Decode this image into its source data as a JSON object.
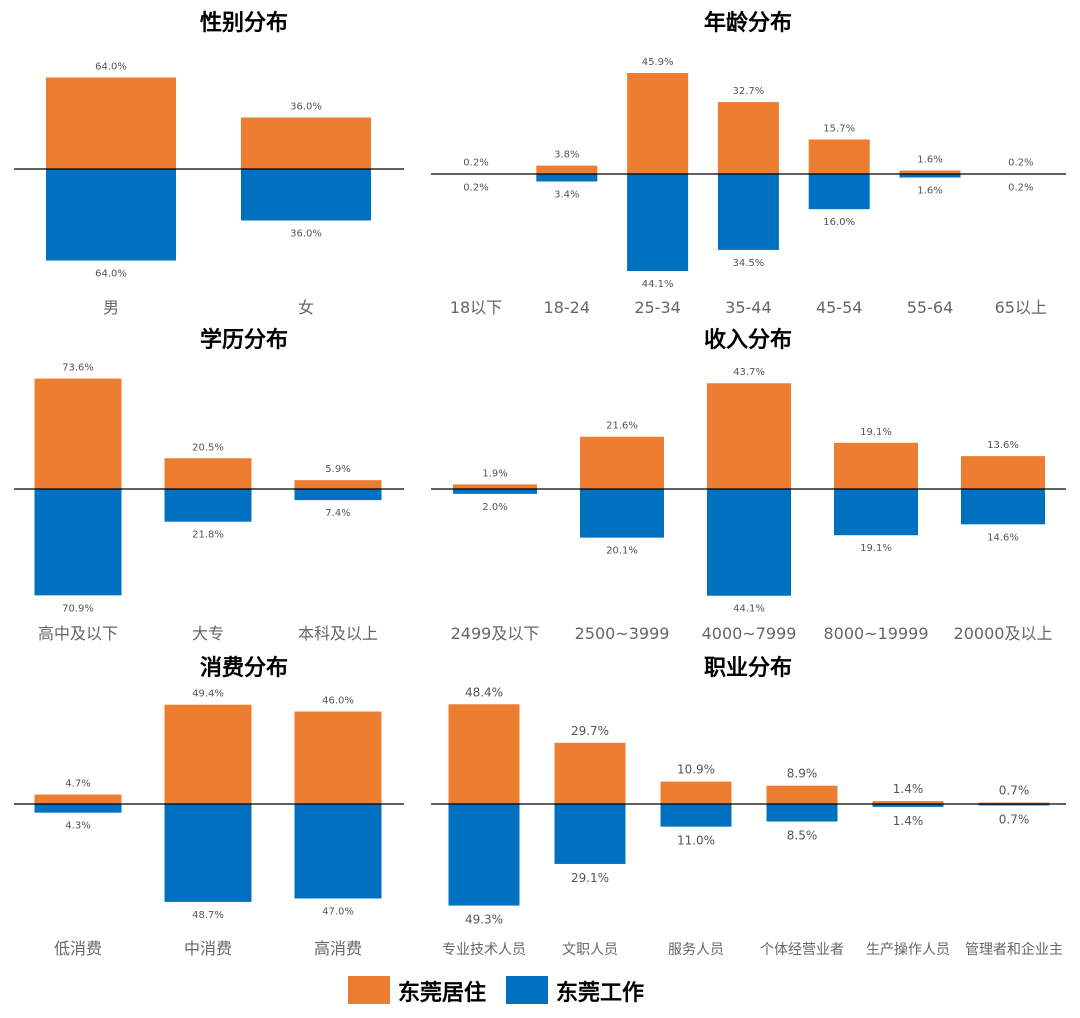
{
  "colors": {
    "live": "#ED7D31",
    "work": "#0070C0",
    "axis": "#000000"
  },
  "legend": {
    "live": "东莞居住",
    "work": "东莞工作"
  },
  "chart_data": [
    {
      "type": "bar",
      "title": "性别分布",
      "categories": [
        "男",
        "女"
      ],
      "series": [
        {
          "name": "东莞居住",
          "values": [
            64.0,
            36.0
          ]
        },
        {
          "name": "东莞工作",
          "values": [
            64.0,
            36.0
          ]
        }
      ],
      "value_labels": {
        "live": [
          "64.0%",
          "36.0%"
        ],
        "work": [
          "64.0%",
          "36.0%"
        ]
      }
    },
    {
      "type": "bar",
      "title": "年龄分布",
      "categories": [
        "18以下",
        "18-24",
        "25-34",
        "35-44",
        "45-54",
        "55-64",
        "65以上"
      ],
      "series": [
        {
          "name": "东莞居住",
          "values": [
            0.2,
            3.8,
            45.9,
            32.7,
            15.7,
            1.6,
            0.2
          ]
        },
        {
          "name": "东莞工作",
          "values": [
            0.2,
            3.4,
            44.1,
            34.5,
            16.0,
            1.6,
            0.2
          ]
        }
      ],
      "value_labels": {
        "live": [
          "0.2%",
          "3.8%",
          "45.9%",
          "32.7%",
          "15.7%",
          "1.6%",
          "0.2%"
        ],
        "work": [
          "0.2%",
          "3.4%",
          "44.1%",
          "34.5%",
          "16.0%",
          "1.6%",
          "0.2%"
        ]
      }
    },
    {
      "type": "bar",
      "title": "学历分布",
      "categories": [
        "高中及以下",
        "大专",
        "本科及以上"
      ],
      "series": [
        {
          "name": "东莞居住",
          "values": [
            73.6,
            20.5,
            5.9
          ]
        },
        {
          "name": "东莞工作",
          "values": [
            70.9,
            21.8,
            7.4
          ]
        }
      ],
      "value_labels": {
        "live": [
          "73.6%",
          "20.5%",
          "5.9%"
        ],
        "work": [
          "70.9%",
          "21.8%",
          "7.4%"
        ]
      }
    },
    {
      "type": "bar",
      "title": "收入分布",
      "categories": [
        "2499及以下",
        "2500~3999",
        "4000~7999",
        "8000~19999",
        "20000及以上"
      ],
      "series": [
        {
          "name": "东莞居住",
          "values": [
            1.9,
            21.6,
            43.7,
            19.1,
            13.6
          ]
        },
        {
          "name": "东莞工作",
          "values": [
            2.0,
            20.1,
            44.1,
            19.1,
            14.6
          ]
        }
      ],
      "value_labels": {
        "live": [
          "1.9%",
          "21.6%",
          "43.7%",
          "19.1%",
          "13.6%"
        ],
        "work": [
          "2.0%",
          "20.1%",
          "44.1%",
          "19.1%",
          "14.6%"
        ]
      }
    },
    {
      "type": "bar",
      "title": "消费分布",
      "categories": [
        "低消费",
        "中消费",
        "高消费"
      ],
      "series": [
        {
          "name": "东莞居住",
          "values": [
            4.7,
            49.4,
            46.0
          ]
        },
        {
          "name": "东莞工作",
          "values": [
            4.3,
            48.7,
            47.0
          ]
        }
      ],
      "value_labels": {
        "live": [
          "4.7%",
          "49.4%",
          "46.0%"
        ],
        "work": [
          "4.3%",
          "48.7%",
          "47.0%"
        ]
      }
    },
    {
      "type": "bar",
      "title": "职业分布",
      "categories": [
        "专业技术人员",
        "文职人员",
        "服务人员",
        "个体经营业者",
        "生产操作人员",
        "管理者和企业主"
      ],
      "series": [
        {
          "name": "东莞居住",
          "values": [
            48.4,
            29.7,
            10.9,
            8.9,
            1.4,
            0.7
          ]
        },
        {
          "name": "东莞工作",
          "values": [
            49.3,
            29.1,
            11.0,
            8.5,
            1.4,
            0.7
          ]
        }
      ],
      "value_labels": {
        "live": [
          "48.4%",
          "29.7%",
          "10.9%",
          "8.9%",
          "1.4%",
          "0.7%"
        ],
        "work": [
          "49.3%",
          "29.1%",
          "11.0%",
          "8.5%",
          "1.4%",
          "0.7%"
        ]
      }
    }
  ]
}
